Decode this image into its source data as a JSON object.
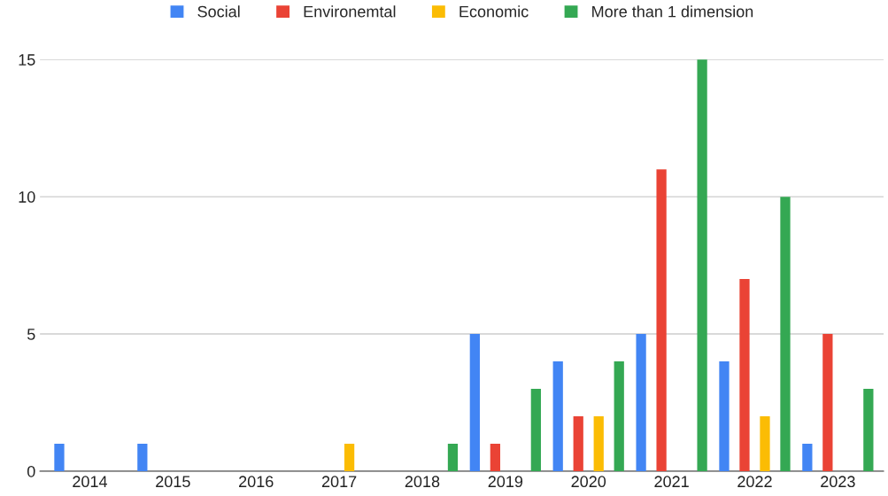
{
  "chart_data": {
    "type": "bar",
    "categories": [
      "2014",
      "2015",
      "2016",
      "2017",
      "2018",
      "2019",
      "2020",
      "2021",
      "2022",
      "2023"
    ],
    "series": [
      {
        "name": "Social",
        "color": "#4285f4",
        "values": [
          1,
          1,
          null,
          null,
          null,
          5,
          4,
          5,
          4,
          1
        ]
      },
      {
        "name": "Environemtal",
        "color": "#ea4335",
        "values": [
          null,
          null,
          null,
          null,
          null,
          1,
          2,
          11,
          7,
          5
        ]
      },
      {
        "name": "Economic",
        "color": "#fbbc04",
        "values": [
          null,
          null,
          null,
          1,
          null,
          null,
          2,
          null,
          2,
          null
        ]
      },
      {
        "name": "More than 1 dimension",
        "color": "#34a853",
        "values": [
          null,
          null,
          null,
          null,
          1,
          3,
          4,
          15,
          10,
          3
        ]
      }
    ],
    "ylim": [
      0,
      15
    ],
    "yticks": [
      0,
      5,
      10,
      15
    ],
    "grid": "y",
    "legend": "top"
  }
}
